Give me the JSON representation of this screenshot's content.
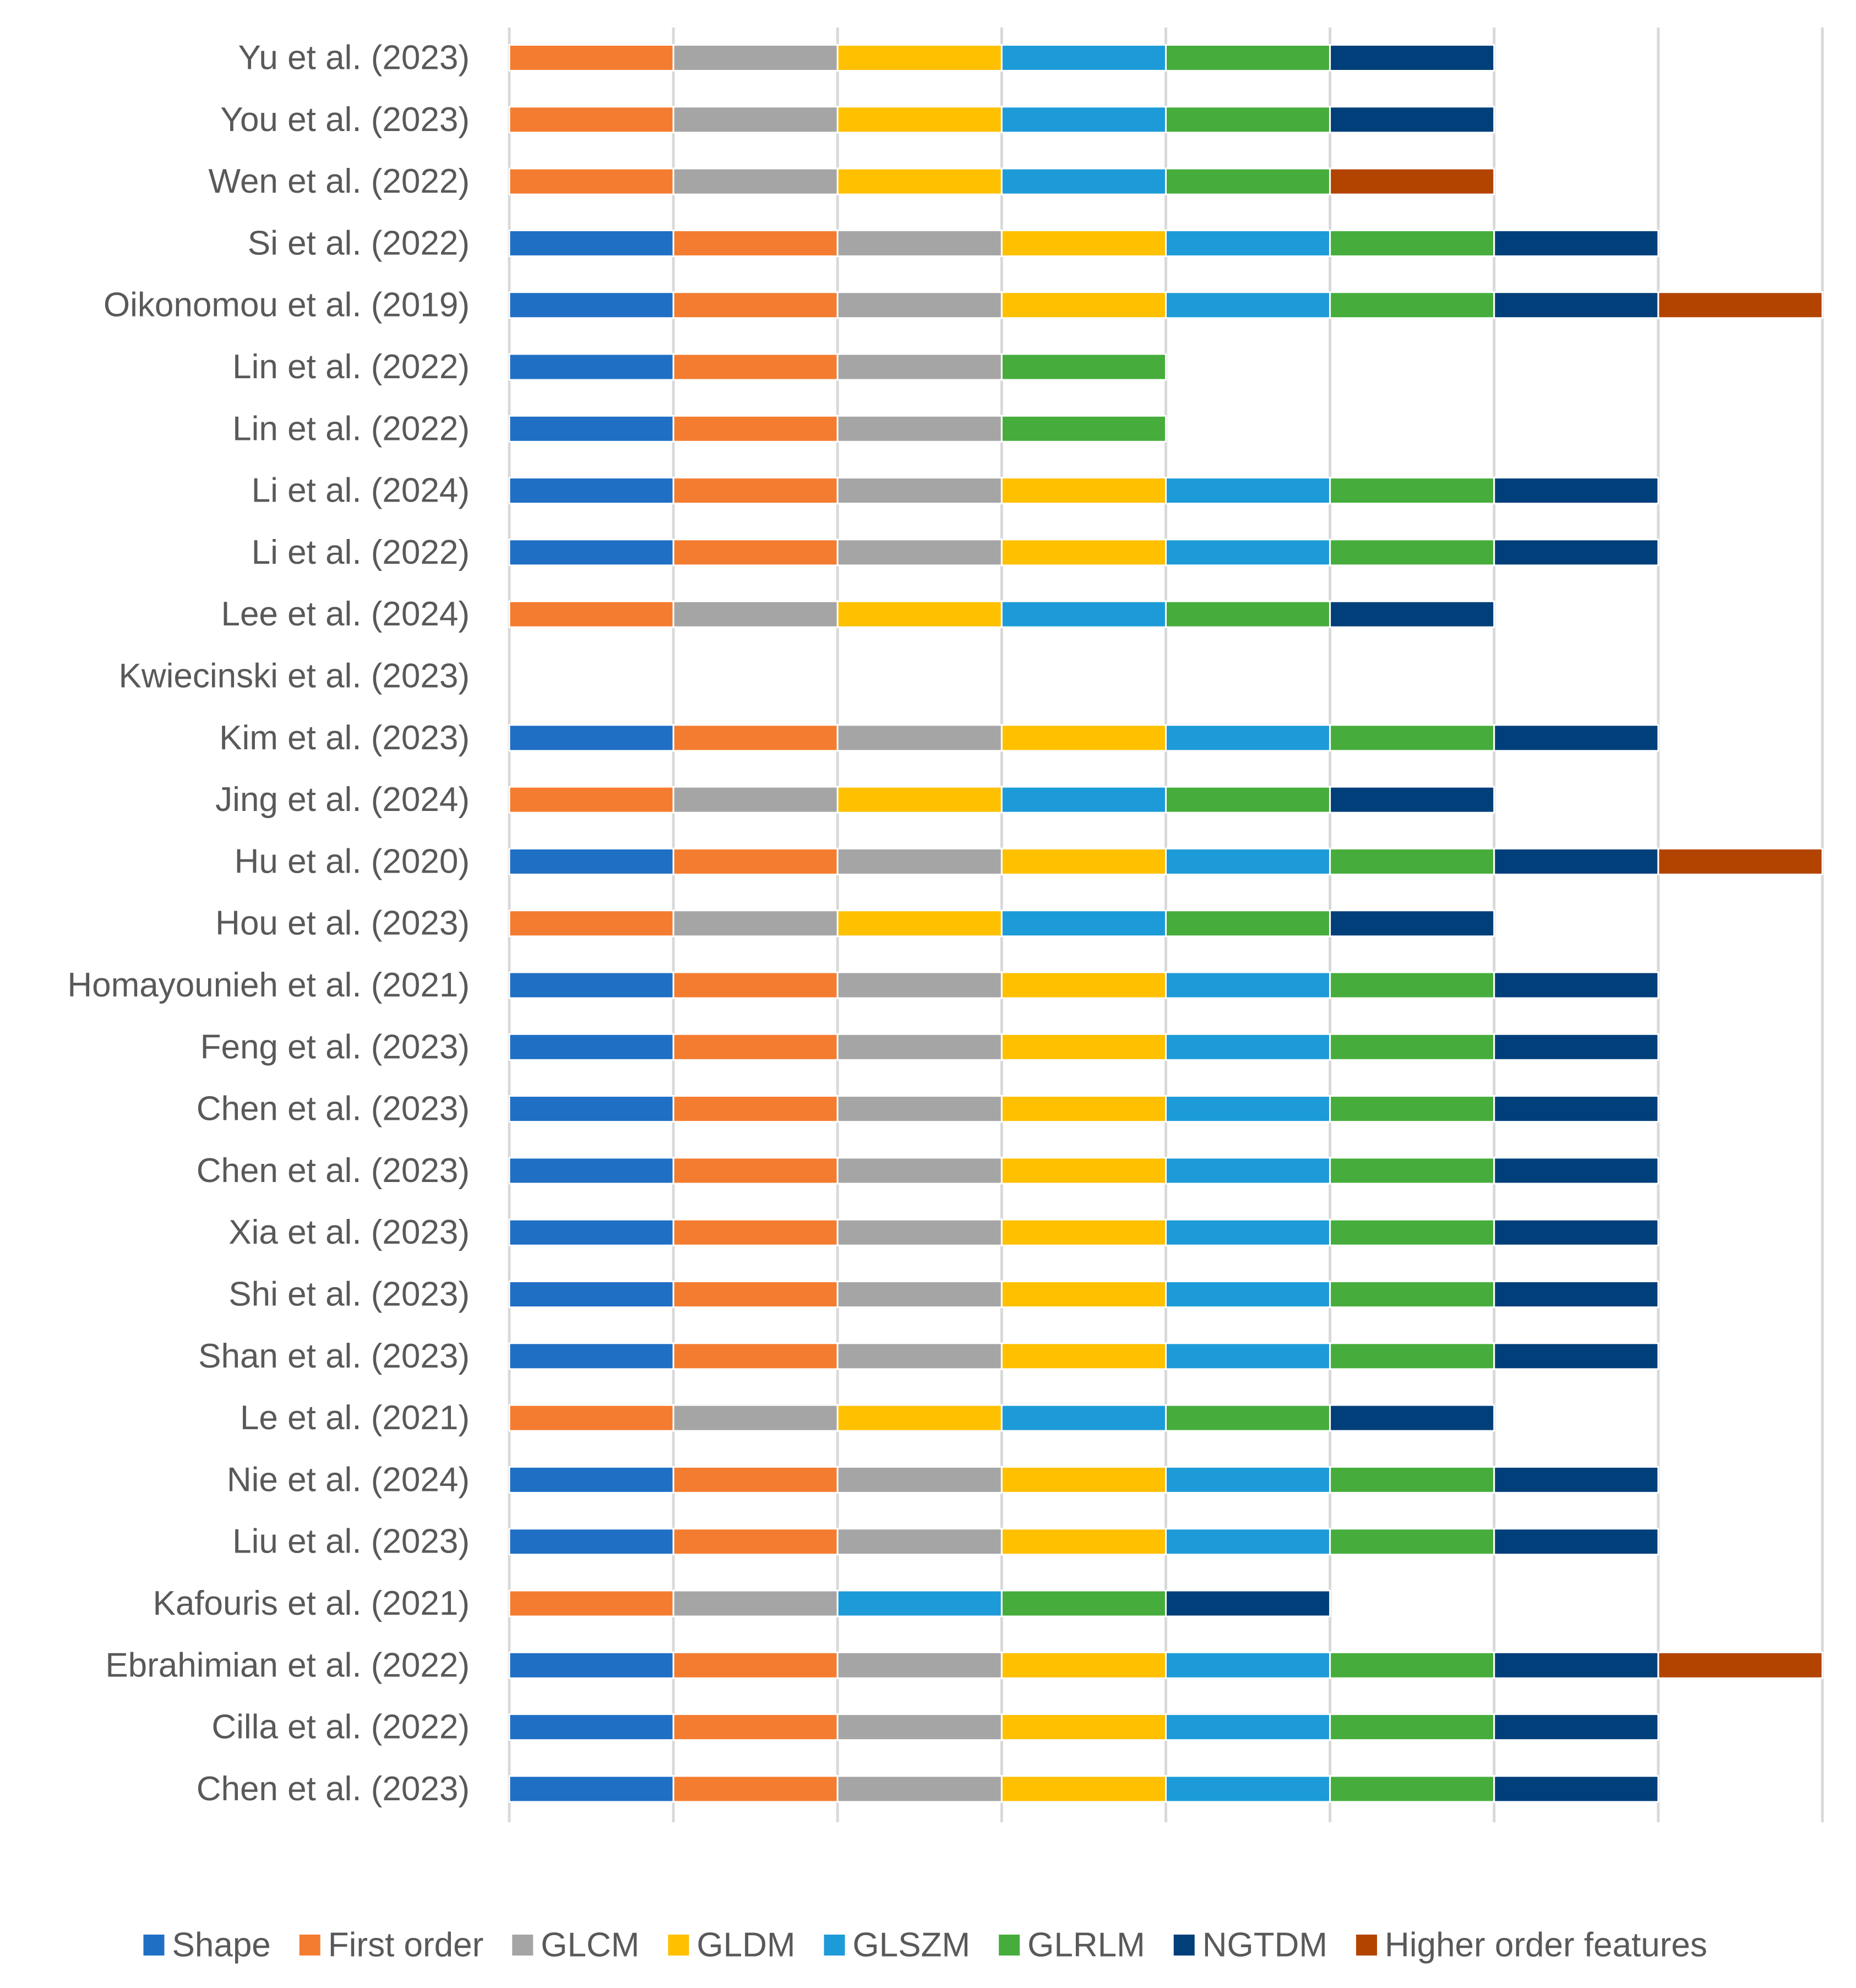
{
  "chart_data": {
    "type": "bar",
    "orientation": "horizontal",
    "stacked": true,
    "grid": true,
    "legend_position": "bottom",
    "categories": [
      "Yu et al. (2023)",
      "You et al. (2023)",
      "Wen et al. (2022)",
      "Si et al. (2022)",
      "Oikonomou et al. (2019)",
      "Lin et al. (2022)",
      "Lin et al. (2022)",
      "Li et al. (2024)",
      "Li et al. (2022)",
      "Lee et al. (2024)",
      "Kwiecinski et al. (2023)",
      "Kim et al. (2023)",
      "Jing et al. (2024)",
      "Hu et al. (2020)",
      "Hou et al. (2023)",
      "Homayounieh et al. (2021)",
      "Feng et al. (2023)",
      "Chen et al. (2023)",
      "Chen et al. (2023)",
      "Xia et al. (2023)",
      "Shi et al. (2023)",
      "Shan et al. (2023)",
      "Le et al. (2021)",
      "Nie et al. (2024)",
      "Liu et al. (2023)",
      "Kafouris et al. (2021)",
      "Ebrahimian et al. (2022)",
      "Cilla et al. (2022)",
      "Chen et al. (2023)"
    ],
    "series": [
      {
        "name": "Shape",
        "color": "#1f6fc5",
        "values": [
          0,
          0,
          0,
          1,
          1,
          1,
          1,
          1,
          1,
          0,
          0,
          1,
          0,
          1,
          0,
          1,
          1,
          1,
          1,
          1,
          1,
          1,
          0,
          1,
          1,
          0,
          1,
          1,
          1
        ]
      },
      {
        "name": "First order",
        "color": "#f47c30",
        "values": [
          1,
          1,
          1,
          1,
          1,
          1,
          1,
          1,
          1,
          1,
          0,
          1,
          1,
          1,
          1,
          1,
          1,
          1,
          1,
          1,
          1,
          1,
          1,
          1,
          1,
          1,
          1,
          1,
          1
        ]
      },
      {
        "name": "GLCM",
        "color": "#a5a5a5",
        "values": [
          1,
          1,
          1,
          1,
          1,
          1,
          1,
          1,
          1,
          1,
          0,
          1,
          1,
          1,
          1,
          1,
          1,
          1,
          1,
          1,
          1,
          1,
          1,
          1,
          1,
          1,
          1,
          1,
          1
        ]
      },
      {
        "name": "GLDM",
        "color": "#ffc000",
        "values": [
          1,
          1,
          1,
          1,
          1,
          0,
          0,
          1,
          1,
          1,
          0,
          1,
          1,
          1,
          1,
          1,
          1,
          1,
          1,
          1,
          1,
          1,
          1,
          1,
          1,
          0,
          1,
          1,
          1
        ]
      },
      {
        "name": "GLSZM",
        "color": "#1d9bd8",
        "values": [
          1,
          1,
          1,
          1,
          1,
          0,
          0,
          1,
          1,
          1,
          0,
          1,
          1,
          1,
          1,
          1,
          1,
          1,
          1,
          1,
          1,
          1,
          1,
          1,
          1,
          1,
          1,
          1,
          1
        ]
      },
      {
        "name": "GLRLM",
        "color": "#46ad3c",
        "values": [
          1,
          1,
          1,
          1,
          1,
          1,
          1,
          1,
          1,
          1,
          0,
          1,
          1,
          1,
          1,
          1,
          1,
          1,
          1,
          1,
          1,
          1,
          1,
          1,
          1,
          1,
          1,
          1,
          1
        ]
      },
      {
        "name": "NGTDM",
        "color": "#003f7a",
        "values": [
          1,
          1,
          0,
          1,
          1,
          0,
          0,
          1,
          1,
          1,
          0,
          1,
          1,
          1,
          1,
          1,
          1,
          1,
          1,
          1,
          1,
          1,
          1,
          1,
          1,
          1,
          1,
          1,
          1
        ]
      },
      {
        "name": "Higher order features",
        "color": "#b34400",
        "values": [
          0,
          0,
          1,
          0,
          1,
          0,
          0,
          0,
          0,
          0,
          0,
          0,
          0,
          1,
          0,
          0,
          0,
          0,
          0,
          0,
          0,
          0,
          0,
          0,
          0,
          0,
          1,
          0,
          0
        ]
      }
    ],
    "xlim": [
      0,
      8
    ]
  }
}
